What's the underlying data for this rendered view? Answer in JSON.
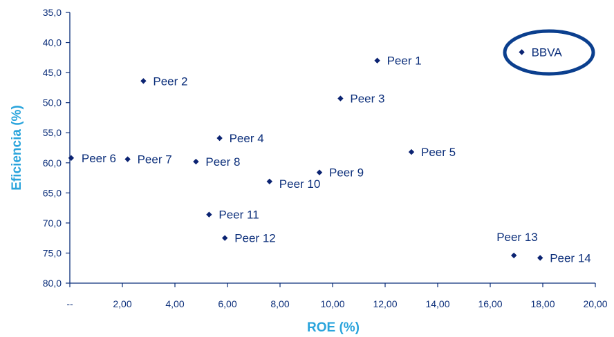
{
  "chart_data": {
    "type": "scatter",
    "xlabel": "ROE (%)",
    "ylabel": "Eficiencia (%)",
    "xlim": [
      0,
      20
    ],
    "ylim": [
      35,
      80
    ],
    "y_inverted": true,
    "grid": false,
    "x_ticks": [
      {
        "value": 0,
        "label": "--"
      },
      {
        "value": 2,
        "label": "2,00"
      },
      {
        "value": 4,
        "label": "4,00"
      },
      {
        "value": 6,
        "label": "6,00"
      },
      {
        "value": 8,
        "label": "8,00"
      },
      {
        "value": 10,
        "label": "10,00"
      },
      {
        "value": 12,
        "label": "12,00"
      },
      {
        "value": 14,
        "label": "14,00"
      },
      {
        "value": 16,
        "label": "16,00"
      },
      {
        "value": 18,
        "label": "18,00"
      },
      {
        "value": 20,
        "label": "20,00"
      }
    ],
    "y_ticks": [
      {
        "value": 35,
        "label": "35,0"
      },
      {
        "value": 40,
        "label": "40,0"
      },
      {
        "value": 45,
        "label": "45,0"
      },
      {
        "value": 50,
        "label": "50,0"
      },
      {
        "value": 55,
        "label": "55,0"
      },
      {
        "value": 60,
        "label": "60,0"
      },
      {
        "value": 65,
        "label": "65,0"
      },
      {
        "value": 70,
        "label": "70,0"
      },
      {
        "value": 75,
        "label": "75,0"
      },
      {
        "value": 80,
        "label": "80,0"
      }
    ],
    "points": [
      {
        "label": "BBVA",
        "x": 17.2,
        "y": 41.6,
        "highlighted": true
      },
      {
        "label": "Peer 1",
        "x": 11.7,
        "y": 43.0
      },
      {
        "label": "Peer 2",
        "x": 2.8,
        "y": 46.4
      },
      {
        "label": "Peer 3",
        "x": 10.3,
        "y": 49.3
      },
      {
        "label": "Peer 4",
        "x": 5.7,
        "y": 55.9
      },
      {
        "label": "Peer 5",
        "x": 13.0,
        "y": 58.2
      },
      {
        "label": "Peer 6",
        "x": 0.05,
        "y": 59.2
      },
      {
        "label": "Peer 7",
        "x": 2.2,
        "y": 59.4
      },
      {
        "label": "Peer 8",
        "x": 4.8,
        "y": 59.8
      },
      {
        "label": "Peer 9",
        "x": 9.5,
        "y": 61.6
      },
      {
        "label": "Peer 10",
        "x": 7.6,
        "y": 63.1
      },
      {
        "label": "Peer 11",
        "x": 5.3,
        "y": 68.6
      },
      {
        "label": "Peer 12",
        "x": 5.9,
        "y": 72.5
      },
      {
        "label": "Peer 13",
        "x": 16.9,
        "y": 75.4
      },
      {
        "label": "Peer 14",
        "x": 17.9,
        "y": 75.8
      }
    ],
    "colors": {
      "marker": "#0b2372",
      "axis": "#0b2e7a",
      "axis_title": "#2aa4dc",
      "highlight_ring": "#0b3f8e"
    }
  }
}
